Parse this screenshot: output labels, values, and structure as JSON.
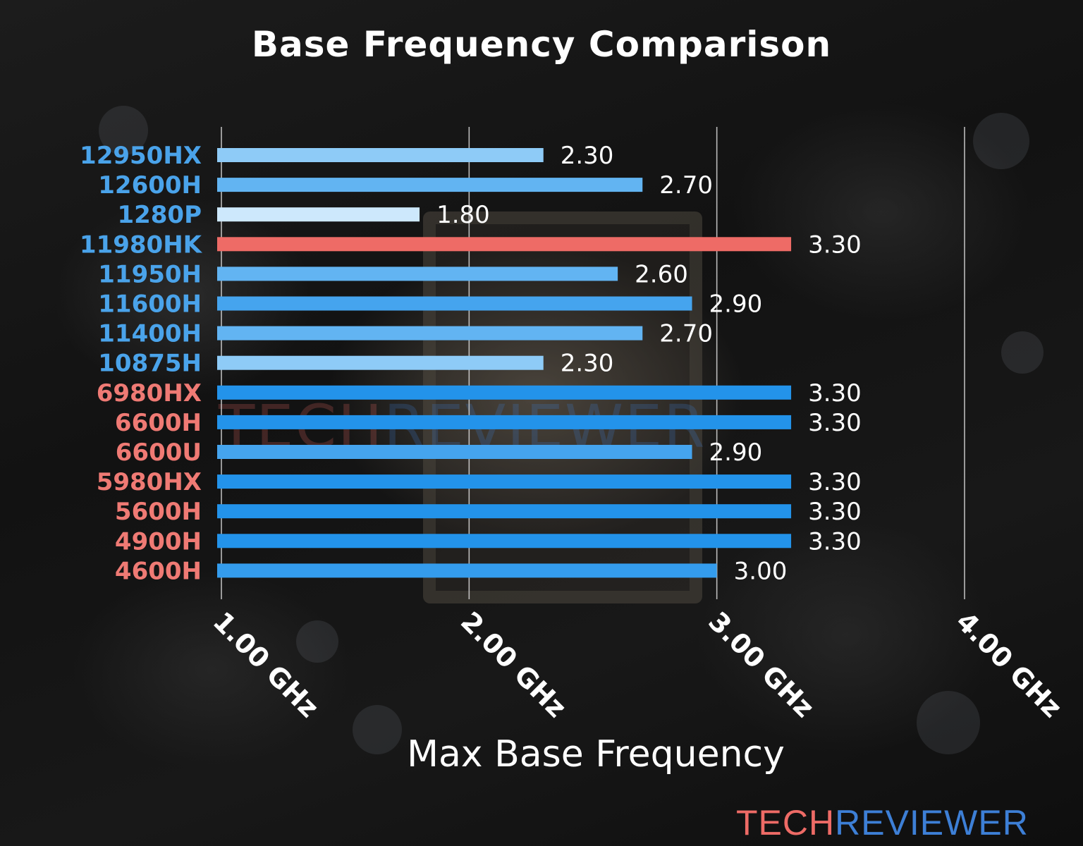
{
  "colors": {
    "background": "#141414",
    "intel_label": "#4aa3ea",
    "amd_label": "#ef7a74",
    "highlight_bar": "#ee6b66",
    "grid": "#d8d8d8",
    "text": "#ffffff",
    "brand_tech": "#ee6b66",
    "brand_reviewer": "#3d7fd6"
  },
  "logo": {
    "tech": "TECH",
    "reviewer": "REVIEWER"
  },
  "watermark": {
    "tech": "TECH",
    "reviewer": "REVIEWER"
  },
  "chart_data": {
    "type": "bar",
    "orientation": "horizontal",
    "title": "Base Frequency Comparison",
    "xlabel": "Max Base Frequency",
    "ylabel": "",
    "xlim": [
      1.0,
      4.0
    ],
    "x_ticks": [
      1.0,
      2.0,
      3.0,
      4.0
    ],
    "x_tick_labels": [
      "1.00 GHz",
      "2.00 GHz",
      "3.00 GHz",
      "4.00 GHz"
    ],
    "grid": "vertical",
    "categories": [
      "12950HX",
      "12600H",
      "1280P",
      "11980HK",
      "11950H",
      "11600H",
      "11400H",
      "10875H",
      "6980HX",
      "6600H",
      "6600U",
      "5980HX",
      "5600H",
      "4900H",
      "4600H"
    ],
    "values": [
      2.3,
      2.7,
      1.8,
      3.3,
      2.6,
      2.9,
      2.7,
      2.3,
      3.3,
      3.3,
      2.9,
      3.3,
      3.3,
      3.3,
      3.0
    ],
    "value_labels": [
      "2.30",
      "2.70",
      "1.80",
      "3.30",
      "2.60",
      "2.90",
      "2.70",
      "2.30",
      "3.30",
      "3.30",
      "2.90",
      "3.30",
      "3.30",
      "3.30",
      "3.00"
    ],
    "label_colors": [
      "intel",
      "intel",
      "intel",
      "intel",
      "intel",
      "intel",
      "intel",
      "intel",
      "amd",
      "amd",
      "amd",
      "amd",
      "amd",
      "amd",
      "amd"
    ],
    "bar_colors": [
      "#8ecbf7",
      "#62b4f2",
      "#cde8fc",
      "#ee6b66",
      "#62b4f2",
      "#45a4ee",
      "#62b4f2",
      "#8ecbf7",
      "#2393ea",
      "#2393ea",
      "#45a4ee",
      "#2393ea",
      "#2393ea",
      "#2393ea",
      "#349ced"
    ],
    "highlighted_category": "11980HK"
  }
}
